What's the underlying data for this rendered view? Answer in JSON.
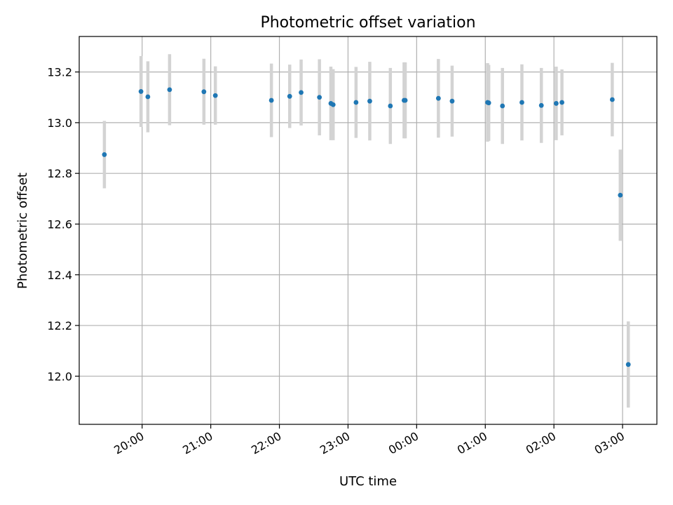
{
  "chart_data": {
    "type": "scatter",
    "title": "Photometric offset variation",
    "xlabel": "UTC time",
    "ylabel": "Photometric offset",
    "x_axis": "time",
    "x_range_hours": [
      "19:05",
      "03:30"
    ],
    "ylim": [
      11.81,
      13.34
    ],
    "grid": true,
    "x_ticks": [
      {
        "label": "20:00",
        "hour": 20
      },
      {
        "label": "21:00",
        "hour": 21
      },
      {
        "label": "22:00",
        "hour": 22
      },
      {
        "label": "23:00",
        "hour": 23
      },
      {
        "label": "00:00",
        "hour": 24
      },
      {
        "label": "01:00",
        "hour": 25
      },
      {
        "label": "02:00",
        "hour": 26
      },
      {
        "label": "03:00",
        "hour": 27
      }
    ],
    "y_ticks": [
      {
        "label": "12.0",
        "value": 12.0
      },
      {
        "label": "12.2",
        "value": 12.2
      },
      {
        "label": "12.4",
        "value": 12.4
      },
      {
        "label": "12.6",
        "value": 12.6
      },
      {
        "label": "12.8",
        "value": 12.8
      },
      {
        "label": "13.0",
        "value": 13.0
      },
      {
        "label": "13.2",
        "value": 13.2
      }
    ],
    "series": [
      {
        "marker_color": "#1f77b4",
        "errorbar_color": "#d3d3d3",
        "points": [
          {
            "t": "19:27",
            "y": 12.874,
            "err": 0.133
          },
          {
            "t": "19:59",
            "y": 13.123,
            "err": 0.14
          },
          {
            "t": "20:05",
            "y": 13.102,
            "err": 0.14
          },
          {
            "t": "20:24",
            "y": 13.13,
            "err": 0.14
          },
          {
            "t": "20:54",
            "y": 13.122,
            "err": 0.13
          },
          {
            "t": "21:04",
            "y": 13.107,
            "err": 0.115
          },
          {
            "t": "21:53",
            "y": 13.088,
            "err": 0.145
          },
          {
            "t": "22:09",
            "y": 13.104,
            "err": 0.125
          },
          {
            "t": "22:19",
            "y": 13.119,
            "err": 0.13
          },
          {
            "t": "22:35",
            "y": 13.1,
            "err": 0.15
          },
          {
            "t": "22:45",
            "y": 13.076,
            "err": 0.145
          },
          {
            "t": "22:47",
            "y": 13.071,
            "err": 0.14
          },
          {
            "t": "23:07",
            "y": 13.08,
            "err": 0.14
          },
          {
            "t": "23:19",
            "y": 13.085,
            "err": 0.155
          },
          {
            "t": "23:37",
            "y": 13.066,
            "err": 0.15
          },
          {
            "t": "23:49",
            "y": 13.088,
            "err": 0.15
          },
          {
            "t": "23:50",
            "y": 13.088,
            "err": 0.15
          },
          {
            "t": "00:19",
            "y": 13.096,
            "err": 0.155
          },
          {
            "t": "00:31",
            "y": 13.085,
            "err": 0.14
          },
          {
            "t": "01:02",
            "y": 13.08,
            "err": 0.155
          },
          {
            "t": "01:03",
            "y": 13.078,
            "err": 0.15
          },
          {
            "t": "01:15",
            "y": 13.066,
            "err": 0.15
          },
          {
            "t": "01:32",
            "y": 13.08,
            "err": 0.15
          },
          {
            "t": "01:49",
            "y": 13.068,
            "err": 0.148
          },
          {
            "t": "02:02",
            "y": 13.076,
            "err": 0.145
          },
          {
            "t": "02:07",
            "y": 13.08,
            "err": 0.13
          },
          {
            "t": "02:51",
            "y": 13.091,
            "err": 0.145
          },
          {
            "t": "02:58",
            "y": 12.714,
            "err": 0.18
          },
          {
            "t": "03:05",
            "y": 12.046,
            "err": 0.17
          }
        ]
      }
    ]
  }
}
